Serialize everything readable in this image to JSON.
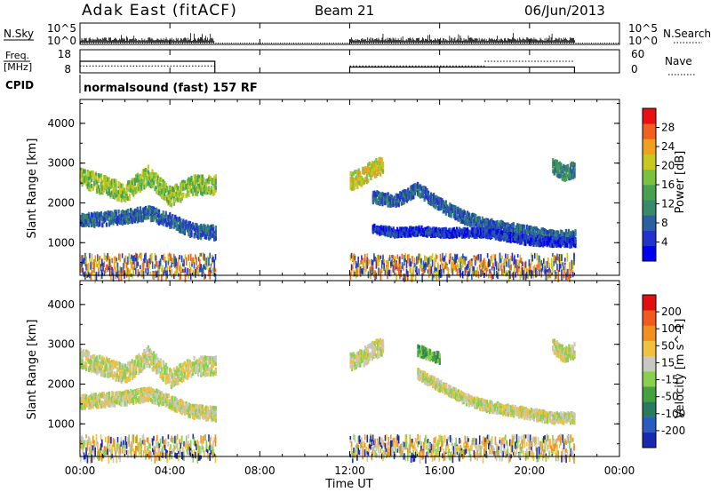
{
  "header": {
    "site": "Adak East (fitACF)",
    "beam": "Beam 21",
    "date": "06/Jun/2013"
  },
  "top_panels": {
    "nsky_label": "N.Sky",
    "nsearch_label": "N.Search",
    "nsky_ticks": [
      "10^5",
      "10^0"
    ],
    "nsearch_ticks": [
      "10^5",
      "10^0"
    ],
    "freq_label_1": "Freq.",
    "freq_label_2": "[MHz]",
    "freq_ticks": [
      "18",
      "8"
    ],
    "nave_label": "Nave",
    "nave_ticks": [
      "60",
      "0"
    ],
    "cpid_label": "CPID",
    "cpid_text": "normalsound (fast) 157 RF"
  },
  "x_axis": {
    "title": "Time UT",
    "ticks": [
      "00:00",
      "04:00",
      "08:00",
      "12:00",
      "16:00",
      "20:00",
      "00:00"
    ]
  },
  "power_panel": {
    "y_label": "Slant Range [km]",
    "y_ticks": [
      "4000",
      "3000",
      "2000",
      "1000"
    ],
    "colorbar_label": "Power [dB]",
    "colorbar_ticks": [
      "28",
      "24",
      "20",
      "16",
      "12",
      "8",
      "4"
    ],
    "colors": [
      "#0000ee",
      "#2233cc",
      "#2a60a0",
      "#3a8a6a",
      "#48a050",
      "#7cc040",
      "#c8c820",
      "#f0a020",
      "#f06020",
      "#e81010"
    ]
  },
  "velocity_panel": {
    "y_label": "Slant Range [km]",
    "y_ticks": [
      "4000",
      "3000",
      "2000",
      "1000"
    ],
    "colorbar_label": "Velocity [m s^-1]",
    "colorbar_ticks": [
      "200",
      "100",
      "50",
      "15",
      "-15",
      "-50",
      "-100",
      "-200"
    ],
    "colors": [
      "#1a2ab0",
      "#2a5cc0",
      "#2a7a60",
      "#44a040",
      "#8ad050",
      "#c8c8c0",
      "#f0c040",
      "#f09020",
      "#f05a20",
      "#e01010"
    ]
  },
  "chart_data": {
    "type": "heatmap",
    "x_range_hours": [
      0,
      24
    ],
    "y_range_km": [
      180,
      4600
    ],
    "data_gaps_hours": [
      [
        6,
        12
      ],
      [
        22,
        24
      ]
    ],
    "frequency_mhz": [
      {
        "start": 0,
        "end": 6,
        "value": 13
      },
      {
        "start": 12,
        "end": 22,
        "value": 10.5
      }
    ],
    "nave": [
      {
        "start": 0,
        "end": 6,
        "value": 18
      },
      {
        "start": 12,
        "end": 18,
        "value": 18
      },
      {
        "start": 18,
        "end": 22,
        "value": 30
      }
    ],
    "power_bands": [
      {
        "name": "band-a",
        "pts": [
          [
            0,
            2700
          ],
          [
            1,
            2500
          ],
          [
            2,
            2300
          ],
          [
            3,
            2750
          ],
          [
            4,
            2200
          ],
          [
            5,
            2500
          ],
          [
            6,
            2500
          ]
        ],
        "width": 280,
        "level": 5
      },
      {
        "name": "band-b",
        "pts": [
          [
            0,
            1600
          ],
          [
            1,
            1650
          ],
          [
            2,
            1700
          ],
          [
            3,
            1800
          ],
          [
            4,
            1600
          ],
          [
            5,
            1350
          ],
          [
            6,
            1300
          ]
        ],
        "width": 200,
        "level": 2
      },
      {
        "name": "band-c",
        "pts": [
          [
            12,
            2600
          ],
          [
            12.5,
            2700
          ],
          [
            13,
            2900
          ],
          [
            13.5,
            3000
          ]
        ],
        "width": 260,
        "level": 6
      },
      {
        "name": "band-d",
        "pts": [
          [
            13,
            2200
          ],
          [
            14,
            2100
          ],
          [
            15,
            2400
          ],
          [
            16,
            2000
          ],
          [
            17,
            1700
          ],
          [
            18,
            1500
          ],
          [
            19,
            1400
          ],
          [
            20,
            1300
          ],
          [
            21,
            1200
          ],
          [
            22,
            1200
          ]
        ],
        "width": 180,
        "level": 2
      },
      {
        "name": "band-e",
        "pts": [
          [
            13,
            1400
          ],
          [
            14,
            1300
          ],
          [
            15,
            1350
          ],
          [
            16,
            1300
          ],
          [
            18,
            1300
          ],
          [
            20,
            1100
          ],
          [
            22,
            1050
          ]
        ],
        "width": 120,
        "level": 1
      },
      {
        "name": "band-f",
        "pts": [
          [
            21,
            3000
          ],
          [
            21.5,
            2800
          ],
          [
            22,
            2900
          ]
        ],
        "width": 220,
        "level": 3
      }
    ],
    "velocity_bands": [
      {
        "name": "band-a",
        "pts": [
          [
            0,
            2700
          ],
          [
            1,
            2500
          ],
          [
            2,
            2300
          ],
          [
            3,
            2750
          ],
          [
            4,
            2200
          ],
          [
            5,
            2500
          ],
          [
            6,
            2500
          ]
        ],
        "width": 280,
        "level": 5
      },
      {
        "name": "band-b",
        "pts": [
          [
            0,
            1600
          ],
          [
            1,
            1650
          ],
          [
            2,
            1700
          ],
          [
            3,
            1800
          ],
          [
            4,
            1600
          ],
          [
            5,
            1350
          ],
          [
            6,
            1300
          ]
        ],
        "width": 200,
        "level": 5
      },
      {
        "name": "band-c",
        "pts": [
          [
            12,
            2600
          ],
          [
            12.5,
            2700
          ],
          [
            13,
            2900
          ],
          [
            13.5,
            3000
          ]
        ],
        "width": 260,
        "level": 5
      },
      {
        "name": "band-d",
        "pts": [
          [
            15,
            2300
          ],
          [
            16,
            2000
          ],
          [
            17,
            1700
          ],
          [
            18,
            1500
          ],
          [
            19,
            1400
          ],
          [
            20,
            1300
          ],
          [
            21,
            1200
          ],
          [
            22,
            1200
          ]
        ],
        "width": 150,
        "level": 5
      },
      {
        "name": "band-f",
        "pts": [
          [
            21,
            3000
          ],
          [
            21.5,
            2800
          ],
          [
            22,
            2900
          ]
        ],
        "width": 220,
        "level": 5
      },
      {
        "name": "band-g",
        "pts": [
          [
            15,
            2900
          ],
          [
            16,
            2700
          ]
        ],
        "width": 150,
        "level": 3
      }
    ]
  }
}
